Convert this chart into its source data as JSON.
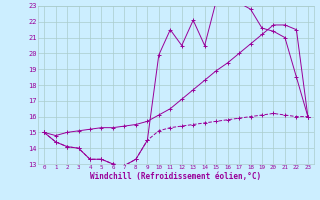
{
  "xlabel": "Windchill (Refroidissement éolien,°C)",
  "xlim": [
    -0.5,
    23.5
  ],
  "ylim": [
    13,
    23
  ],
  "yticks": [
    13,
    14,
    15,
    16,
    17,
    18,
    19,
    20,
    21,
    22,
    23
  ],
  "xticks": [
    0,
    1,
    2,
    3,
    4,
    5,
    6,
    7,
    8,
    9,
    10,
    11,
    12,
    13,
    14,
    15,
    16,
    17,
    18,
    19,
    20,
    21,
    22,
    23
  ],
  "bg_color": "#cceeff",
  "line_color": "#990099",
  "grid_color": "#aacccc",
  "curve1_x": [
    0,
    1,
    2,
    3,
    4,
    5,
    6,
    7,
    8,
    9,
    10,
    11,
    12,
    13,
    14,
    15,
    16,
    17,
    18,
    19,
    20,
    21,
    22,
    23
  ],
  "curve1_y": [
    15.0,
    14.4,
    14.1,
    14.0,
    13.3,
    13.3,
    13.0,
    12.9,
    13.3,
    14.5,
    19.9,
    21.5,
    20.5,
    22.1,
    20.5,
    23.3,
    23.2,
    23.2,
    22.8,
    21.6,
    21.4,
    21.0,
    18.5,
    16.0
  ],
  "curve2_x": [
    0,
    1,
    2,
    3,
    4,
    5,
    6,
    7,
    8,
    9,
    10,
    11,
    12,
    13,
    14,
    15,
    16,
    17,
    18,
    19,
    20,
    21,
    22,
    23
  ],
  "curve2_y": [
    15.0,
    14.8,
    15.0,
    15.1,
    15.2,
    15.3,
    15.3,
    15.4,
    15.5,
    15.7,
    16.1,
    16.5,
    17.1,
    17.7,
    18.3,
    18.9,
    19.4,
    20.0,
    20.6,
    21.2,
    21.8,
    21.8,
    21.5,
    16.0
  ],
  "curve3_x": [
    0,
    1,
    2,
    3,
    4,
    5,
    6,
    7,
    8,
    9,
    10,
    11,
    12,
    13,
    14,
    15,
    16,
    17,
    18,
    19,
    20,
    21,
    22,
    23
  ],
  "curve3_y": [
    15.0,
    14.4,
    14.1,
    14.0,
    13.3,
    13.3,
    13.0,
    12.9,
    13.3,
    14.5,
    15.1,
    15.3,
    15.4,
    15.5,
    15.6,
    15.7,
    15.8,
    15.9,
    16.0,
    16.1,
    16.2,
    16.1,
    16.0,
    16.0
  ]
}
